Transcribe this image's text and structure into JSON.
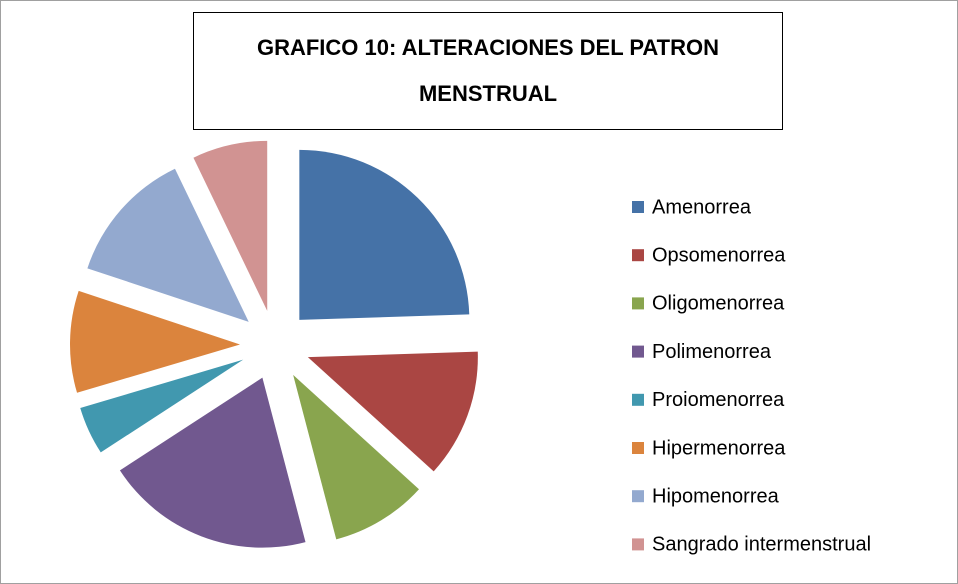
{
  "chart_data": {
    "type": "pie",
    "title": "GRAFICO 10: ALTERACIONES DEL PATRON MENSTRUAL",
    "categories": [
      "Amenorrea",
      "Opsomenorrea",
      "Oligomenorrea",
      "Polimenorrea",
      "Proiomenorrea",
      "Hipermenorrea",
      "Hipomenorrea",
      "Sangrado intermenstrual"
    ],
    "values": [
      24,
      12,
      9,
      19.5,
      4.5,
      9.5,
      12.5,
      7
    ],
    "colors": [
      "#4572a7",
      "#aa4643",
      "#89a54e",
      "#71588f",
      "#4198af",
      "#db843d",
      "#93a9cf",
      "#d19392"
    ],
    "exploded": true,
    "legend": "right"
  }
}
